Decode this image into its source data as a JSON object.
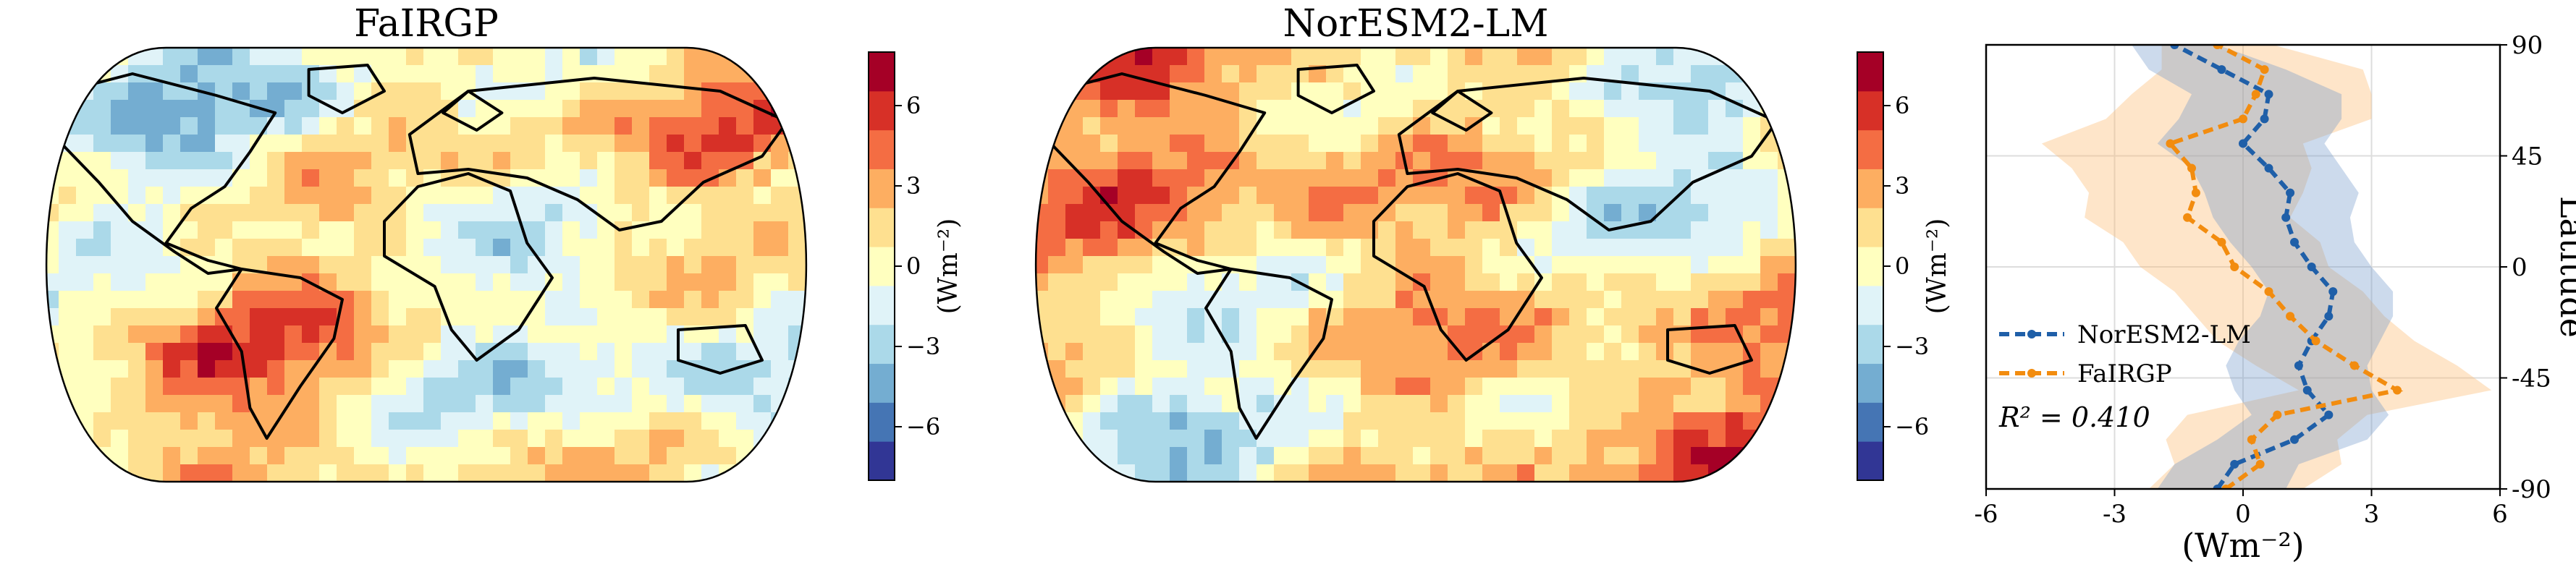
{
  "maps": [
    {
      "title": "FaIRGP"
    },
    {
      "title": "NorESM2-LM"
    }
  ],
  "colorbar": {
    "label": "(Wm⁻²)",
    "range": [
      -8,
      8
    ],
    "ticks": [
      6,
      3,
      0,
      -3,
      -6
    ],
    "tick_labels": [
      "6",
      "3",
      "0",
      "−3",
      "−6"
    ],
    "colors": [
      "#313695",
      "#4575b4",
      "#74add1",
      "#abd9e9",
      "#e0f3f8",
      "#ffffbf",
      "#fee090",
      "#fdae61",
      "#f46d43",
      "#d73027",
      "#a50026"
    ]
  },
  "chart_data": [
    {
      "type": "heatmap",
      "title": "FaIRGP",
      "projection": "Robinson",
      "colorbar_label": "(Wm⁻²)",
      "value_range": [
        -8,
        8
      ]
    },
    {
      "type": "heatmap",
      "title": "NorESM2-LM",
      "projection": "Robinson",
      "colorbar_label": "(Wm⁻²)",
      "value_range": [
        -8,
        8
      ]
    },
    {
      "type": "line",
      "orientation": "horizontal-profile",
      "xlabel": "(Wm⁻²)",
      "ylabel": "Latitude",
      "xlim": [
        -6,
        6
      ],
      "ylim": [
        -90,
        90
      ],
      "xticks": [
        -6,
        -3,
        0,
        3,
        6
      ],
      "xtick_labels": [
        "-6",
        "-3",
        "0",
        "3",
        "6"
      ],
      "yticks": [
        -90,
        -45,
        0,
        45,
        90
      ],
      "ytick_labels": [
        "-90",
        "-45",
        "0",
        "45",
        "90"
      ],
      "yaxis_side": "right",
      "grid": true,
      "legend_position": "lower-left",
      "annotation": "R² = 0.410",
      "latitude": [
        -90,
        -80,
        -70,
        -60,
        -50,
        -40,
        -30,
        -20,
        -10,
        0,
        10,
        20,
        30,
        40,
        50,
        60,
        70,
        80,
        90
      ],
      "series": [
        {
          "name": "NorESM2-LM",
          "color": "#1f5fa8",
          "values": [
            -0.6,
            -0.2,
            1.2,
            2.0,
            1.5,
            1.3,
            1.6,
            2.0,
            2.1,
            1.6,
            1.2,
            1.0,
            1.1,
            0.6,
            0.0,
            0.5,
            0.6,
            -0.5,
            -1.6
          ],
          "band_lower": [
            -2.0,
            -1.6,
            -0.6,
            0.2,
            -0.2,
            -0.4,
            -0.1,
            0.4,
            0.6,
            0.2,
            -0.3,
            -0.7,
            -0.9,
            -1.2,
            -2.0,
            -1.5,
            -1.2,
            -2.2,
            -2.6
          ],
          "band_upper": [
            1.0,
            1.3,
            2.9,
            3.4,
            3.0,
            2.9,
            3.2,
            3.5,
            3.5,
            3.0,
            2.6,
            2.5,
            2.7,
            2.3,
            1.9,
            2.3,
            2.3,
            1.0,
            -0.6
          ]
        },
        {
          "name": "FaIRGP",
          "color": "#f28c0f",
          "values": [
            -0.4,
            0.4,
            0.2,
            0.8,
            3.6,
            2.6,
            1.7,
            1.1,
            0.6,
            -0.2,
            -0.5,
            -1.3,
            -1.1,
            -1.2,
            -1.7,
            0.0,
            0.3,
            0.5,
            -0.6
          ],
          "band_lower": [
            -2.2,
            -1.6,
            -1.8,
            -1.3,
            1.3,
            0.3,
            -0.6,
            -1.1,
            -1.6,
            -2.4,
            -2.8,
            -3.7,
            -3.6,
            -4.0,
            -4.7,
            -3.2,
            -2.6,
            -1.9,
            -1.9
          ],
          "band_upper": [
            1.4,
            2.3,
            2.2,
            2.9,
            5.8,
            5.0,
            4.0,
            3.3,
            2.8,
            2.0,
            1.8,
            1.1,
            1.4,
            1.6,
            1.4,
            3.0,
            3.0,
            2.8,
            0.7
          ]
        }
      ]
    }
  ]
}
